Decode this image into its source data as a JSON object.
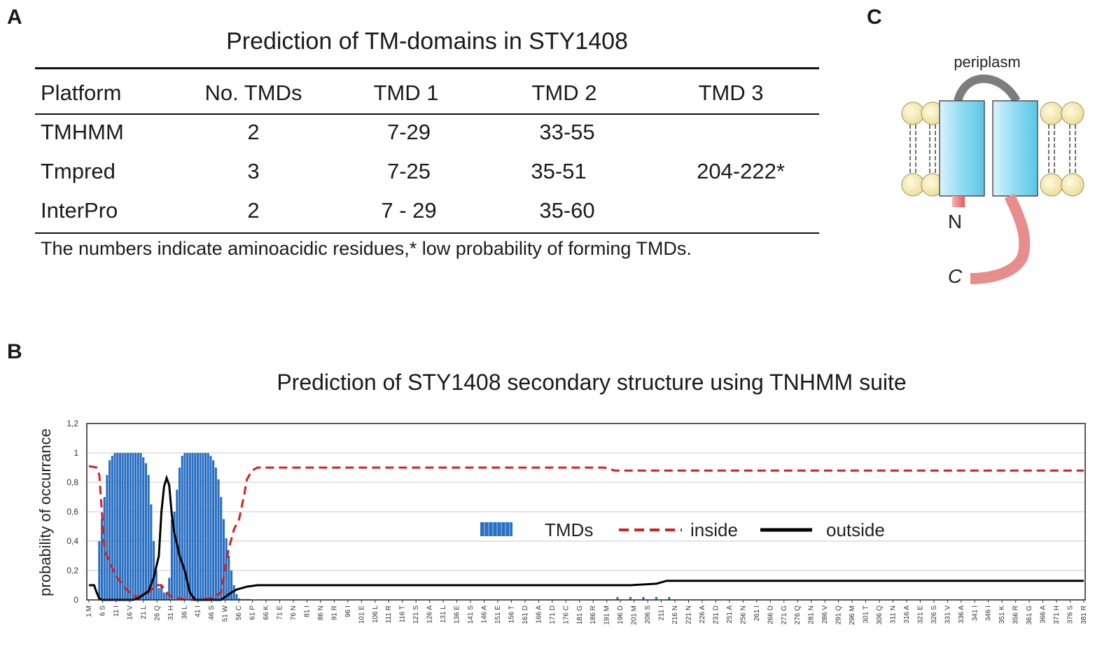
{
  "panel_a": {
    "letter": "A",
    "title": "Prediction of TM-domains in STY1408",
    "headers": [
      "Platform",
      "No. TMDs",
      "TMD 1",
      "TMD 2",
      "TMD 3"
    ],
    "rows": [
      [
        "TMHMM",
        "2",
        "7-29",
        "33-55",
        ""
      ],
      [
        "Tmpred",
        "3",
        "7-25",
        "35-51",
        "204-222*"
      ],
      [
        "InterPro",
        "2",
        "7 - 29",
        "35-60",
        ""
      ]
    ],
    "footnote": "The numbers indicate aminoacidic residues,* low probability of forming TMDs."
  },
  "panel_b": {
    "letter": "B",
    "title": "Prediction of STY1408 secondary structure using TNHMM suite"
  },
  "panel_c": {
    "letter": "C",
    "periplasm_label": "periplasm",
    "n_label": "N",
    "c_label": "C"
  },
  "colors": {
    "tmd_bar": "#2a6fc1",
    "inside_line": "#d42020",
    "outside_line": "#000000",
    "helix": "#aee3f5",
    "lipid_head": "#f6eec0",
    "tail": "#f07a7a"
  },
  "chart_data": {
    "type": "bar+line",
    "title": "Prediction of STY1408 secondary structure using TNHMM suite",
    "ylabel": "probability of occurrance",
    "xlabel": "",
    "ylim": [
      0,
      1.2
    ],
    "yticks": [
      "0",
      "0,2",
      "0,4",
      "0,6",
      "0,8",
      "1",
      "1,2"
    ],
    "grid": true,
    "legend_position": "center-right",
    "n_residues": 385,
    "x_tick_labels": [
      "1 M",
      "6 S",
      "11 I",
      "16 V",
      "21 L",
      "26 Q",
      "31 H",
      "36 L",
      "41 I",
      "46 S",
      "51 W",
      "56 C",
      "61 P",
      "66 K",
      "71 E",
      "76 N",
      "81 I",
      "86 N",
      "91 R",
      "96 I",
      "101 E",
      "106 L",
      "111 R",
      "116 T",
      "121 S",
      "126 A",
      "131 L",
      "136 E",
      "141 S",
      "146 A",
      "151 E",
      "156 T",
      "161 D",
      "166 A",
      "171 D",
      "176 C",
      "181 G",
      "186 R",
      "191 M",
      "196 D",
      "201 M",
      "206 S",
      "211 I",
      "216 N",
      "221 N",
      "226 A",
      "231 D",
      "251 A",
      "256 N",
      "261 I",
      "266 D",
      "271 G",
      "276 Q",
      "281 N",
      "286 V",
      "291 Q",
      "296 M",
      "301 T",
      "306 Q",
      "311 N",
      "316 A",
      "321 E",
      "326 S",
      "331 V",
      "336 A",
      "341 I",
      "346 I",
      "351 K",
      "356 R",
      "361 G",
      "366 A",
      "371 H",
      "376 S",
      "381 R"
    ],
    "series": [
      {
        "name": "TMDs",
        "style": "bars",
        "x": [
          5,
          6,
          7,
          8,
          9,
          10,
          11,
          12,
          13,
          14,
          15,
          16,
          17,
          18,
          19,
          20,
          21,
          22,
          23,
          24,
          25,
          26,
          27,
          28,
          29,
          30,
          31,
          32,
          33,
          34,
          35,
          36,
          37,
          38,
          39,
          40,
          41,
          42,
          43,
          44,
          45,
          46,
          47,
          48,
          49,
          50,
          51,
          52,
          53,
          54,
          55,
          56,
          57,
          58,
          59,
          60,
          61,
          62,
          63,
          205,
          210,
          215,
          220,
          225
        ],
        "y": [
          0.4,
          0.55,
          0.7,
          0.85,
          0.95,
          0.98,
          1,
          1,
          1,
          1,
          1,
          1,
          1,
          1,
          1,
          1,
          1,
          0.97,
          0.93,
          0.85,
          0.65,
          0.4,
          0.2,
          0.08,
          0.1,
          0.05,
          0.05,
          0.15,
          0.55,
          0.6,
          0.75,
          0.9,
          0.98,
          1,
          1,
          1,
          1,
          1,
          1,
          1,
          1,
          1,
          1,
          0.98,
          0.95,
          0.9,
          0.82,
          0.7,
          0.55,
          0.42,
          0.3,
          0.2,
          0.1,
          0.04,
          0.01,
          0,
          0,
          0,
          0,
          0.02,
          0.02,
          0.02,
          0.02,
          0.02
        ]
      },
      {
        "name": "inside",
        "style": "dashed",
        "x": [
          1,
          4,
          5,
          6,
          7,
          9,
          12,
          15,
          18,
          20,
          24,
          27,
          29,
          31,
          33,
          34,
          36,
          40,
          44,
          48,
          52,
          55,
          57,
          59,
          61,
          62,
          64,
          66,
          200,
          204,
          385
        ],
        "y": [
          0.91,
          0.9,
          0.85,
          0.6,
          0.35,
          0.25,
          0.15,
          0.08,
          0.03,
          0.02,
          0.05,
          0.1,
          0.1,
          0.05,
          0.02,
          0.02,
          0.01,
          0.0,
          0.0,
          0.01,
          0.05,
          0.35,
          0.48,
          0.55,
          0.72,
          0.82,
          0.88,
          0.9,
          0.9,
          0.88,
          0.88
        ]
      },
      {
        "name": "outside",
        "style": "solid",
        "x": [
          1,
          3,
          4,
          5,
          6,
          10,
          18,
          20,
          24,
          26,
          28,
          29,
          30,
          31,
          32,
          33,
          34,
          35,
          36,
          38,
          40,
          42,
          46,
          52,
          56,
          58,
          60,
          62,
          66,
          210,
          220,
          224,
          385
        ],
        "y": [
          0.1,
          0.1,
          0.05,
          0.01,
          0.0,
          0.0,
          0.0,
          0.01,
          0.06,
          0.15,
          0.3,
          0.6,
          0.77,
          0.83,
          0.78,
          0.58,
          0.45,
          0.38,
          0.3,
          0.2,
          0.05,
          0.0,
          0.0,
          0.0,
          0.05,
          0.07,
          0.08,
          0.09,
          0.1,
          0.1,
          0.11,
          0.13,
          0.13
        ]
      }
    ]
  }
}
